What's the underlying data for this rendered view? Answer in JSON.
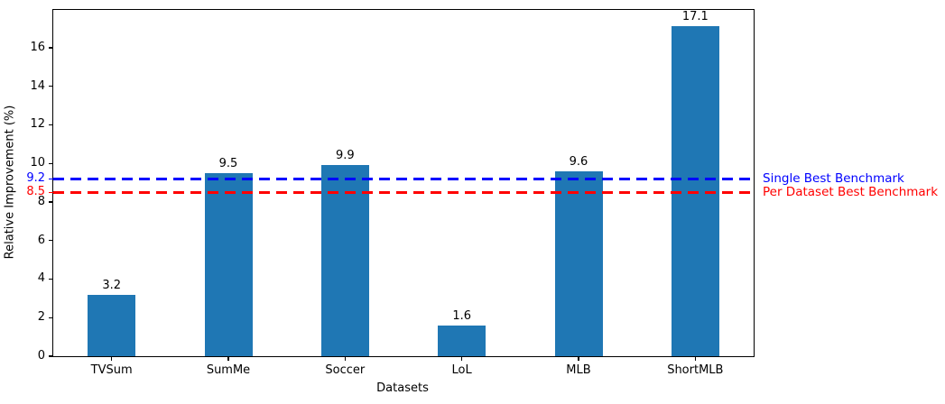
{
  "chart_data": {
    "type": "bar",
    "title": "",
    "xlabel": "Datasets",
    "ylabel": "Relative Improvement (%)",
    "categories": [
      "TVSum",
      "SumMe",
      "Soccer",
      "LoL",
      "MLB",
      "ShortMLB"
    ],
    "values": [
      3.2,
      9.5,
      9.9,
      1.6,
      9.6,
      17.1
    ],
    "bar_color": "#1f77b4",
    "ylim": [
      0,
      17.96
    ],
    "yticks": [
      0,
      2,
      4,
      6,
      8,
      10,
      12,
      14,
      16
    ],
    "grid": false,
    "legend_position": "outside-right",
    "reference_lines": [
      {
        "value": 9.2,
        "tick_label": "9.2",
        "label": "Single Best Benchmark",
        "color": "#0000ff",
        "style": "dashed"
      },
      {
        "value": 8.5,
        "tick_label": "8.5",
        "label": "Per Dataset Best Benchmark",
        "color": "#ff0000",
        "style": "dashed"
      }
    ]
  }
}
